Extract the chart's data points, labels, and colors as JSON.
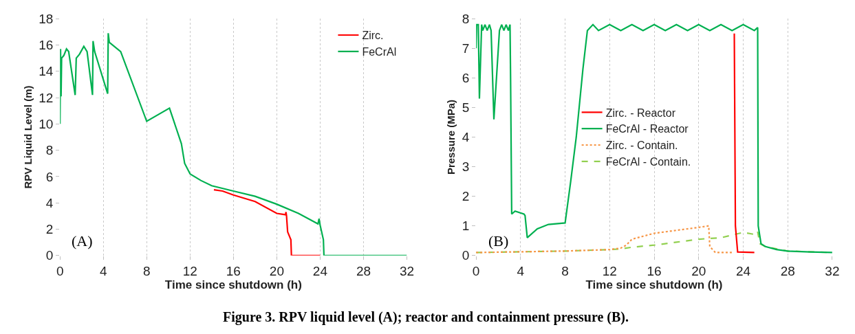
{
  "chart_data": [
    {
      "type": "line",
      "xlabel": "Time since shutdown (h)",
      "ylabel": "RPV Liquid Level (m)",
      "xlim": [
        0,
        32
      ],
      "xticks": [
        0,
        4,
        8,
        12,
        16,
        20,
        24,
        28,
        32
      ],
      "ylim": [
        0,
        18
      ],
      "yticks": [
        0,
        2,
        4,
        6,
        8,
        10,
        12,
        14,
        16,
        18
      ],
      "grid": "x",
      "legend": "top right",
      "marker": "none",
      "annotations": [
        "(A)",
        "Figure 3. RPV liquid level (A); reactor and containment pressure (B)."
      ],
      "series": [
        {
          "name": "Zirc.",
          "color": "#ff0000",
          "line_style": "solid",
          "x": [
            14.2,
            15,
            16,
            18,
            20,
            20.8,
            20.85,
            20.9,
            21.0,
            21.3,
            21.35,
            24.0
          ],
          "values": [
            5.0,
            4.9,
            4.6,
            4.1,
            3.2,
            3.1,
            3.3,
            3.0,
            1.8,
            1.2,
            0,
            0
          ]
        },
        {
          "name": "FeCrAl",
          "color": "#00b050",
          "line_style": "solid",
          "x": [
            0,
            0.05,
            0.1,
            0.15,
            0.35,
            0.6,
            0.8,
            1.4,
            1.5,
            1.8,
            2.2,
            2.5,
            3.0,
            3.05,
            3.2,
            4.4,
            4.45,
            4.55,
            5.6,
            8.0,
            10.1,
            11.2,
            11.5,
            12,
            13,
            14,
            16,
            18,
            20,
            22,
            23.8,
            23.9,
            24.0,
            24.3,
            24.35,
            32
          ],
          "values": [
            10,
            15.7,
            12.1,
            15,
            15.2,
            15.7,
            15.5,
            12.2,
            15,
            15.3,
            15.9,
            15.5,
            12.2,
            16.3,
            15.5,
            12.3,
            16.9,
            16.2,
            15.5,
            10.2,
            11.2,
            8.5,
            7,
            6.2,
            5.7,
            5.3,
            4.9,
            4.5,
            3.9,
            3.2,
            2.4,
            2.8,
            2.3,
            1.2,
            0,
            0
          ]
        }
      ]
    },
    {
      "type": "line",
      "xlabel": "Time since shutdown (h)",
      "ylabel": "Pressure (MPa)",
      "xlim": [
        0,
        32
      ],
      "xticks": [
        0,
        4,
        8,
        12,
        16,
        20,
        24,
        28,
        32
      ],
      "ylim": [
        0,
        8
      ],
      "yticks": [
        0,
        1,
        2,
        3,
        4,
        5,
        6,
        7,
        8
      ],
      "grid": "x",
      "legend": "center",
      "marker": "none",
      "annotations": [
        "(B)"
      ],
      "series": [
        {
          "name": "Zirc. - Reactor",
          "color": "#ff0000",
          "line_style": "solid",
          "x": [
            23.2,
            23.3,
            23.5,
            25.0
          ],
          "values": [
            7.5,
            1,
            0.12,
            0.1
          ]
        },
        {
          "name": "FeCrAl - Reactor",
          "color": "#00b050",
          "line_style": "solid",
          "x": [
            0,
            0.05,
            0.2,
            0.3,
            0.5,
            0.6,
            0.8,
            1.0,
            1.2,
            1.35,
            1.6,
            2.1,
            2.3,
            2.5,
            2.7,
            2.9,
            3.05,
            3.1,
            3.2,
            3.5,
            4.3,
            4.4,
            4.6,
            5.5,
            6.5,
            8.0,
            8.5,
            9,
            9.6,
            10,
            10.5,
            11,
            12,
            13,
            14,
            15,
            16,
            17,
            18,
            19,
            20,
            21,
            22,
            23,
            24,
            25,
            25.3,
            25.35,
            25.6,
            26,
            27,
            28,
            30,
            32
          ],
          "values": [
            7.0,
            7.8,
            7.8,
            5.3,
            7.8,
            7.6,
            7.8,
            7.6,
            7.8,
            7.6,
            4.6,
            7.6,
            7.8,
            7.6,
            7.8,
            7.6,
            7.8,
            6,
            1.4,
            1.5,
            1.4,
            1.35,
            0.6,
            0.9,
            1.05,
            1.1,
            2.5,
            4,
            6.3,
            7.6,
            7.8,
            7.6,
            7.8,
            7.6,
            7.8,
            7.6,
            7.8,
            7.6,
            7.8,
            7.6,
            7.8,
            7.6,
            7.8,
            7.6,
            7.8,
            7.6,
            7.7,
            1,
            0.4,
            0.3,
            0.2,
            0.15,
            0.12,
            0.1
          ]
        },
        {
          "name": "Zirc. - Contain.",
          "color": "#f79646",
          "line_style": "dotted",
          "x": [
            0,
            8,
            12,
            13,
            13.5,
            14,
            15,
            16,
            18,
            20,
            20.9,
            21,
            21.5,
            23
          ],
          "values": [
            0.1,
            0.15,
            0.2,
            0.25,
            0.35,
            0.55,
            0.65,
            0.75,
            0.85,
            0.95,
            1.0,
            0.3,
            0.1,
            0.1
          ]
        },
        {
          "name": "FeCrAl - Contain.",
          "color": "#92d050",
          "line_style": "dashed",
          "x": [
            0,
            8,
            12,
            13,
            14,
            16,
            18,
            20,
            22,
            24,
            25.2,
            25.3,
            25.5,
            26,
            28,
            32
          ],
          "values": [
            0.1,
            0.15,
            0.2,
            0.22,
            0.28,
            0.35,
            0.45,
            0.55,
            0.6,
            0.78,
            0.7,
            0.8,
            0.4,
            0.3,
            0.15,
            0.1
          ]
        }
      ]
    }
  ]
}
